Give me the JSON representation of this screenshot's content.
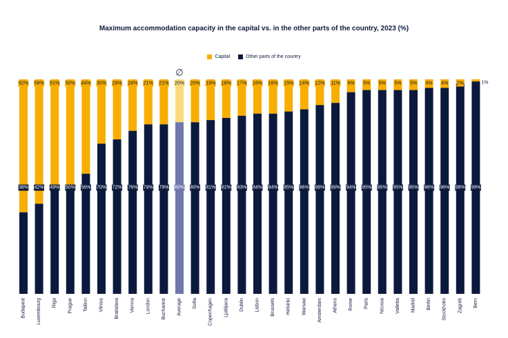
{
  "chart_data": {
    "type": "bar",
    "stacked": true,
    "title": "Maximum accommodation capacity in the capital vs. in the other parts of the country, 2023 (%)",
    "xlabel": "",
    "ylabel": "",
    "ylim": [
      0,
      100
    ],
    "grid": false,
    "legend_position": "top-center",
    "average_symbol": "∅",
    "highlight_category": "Average",
    "categories": [
      "Budapest",
      "Luxembourg",
      "Riga",
      "Prague",
      "Tallinn",
      "Vilnius",
      "Bratislava",
      "Vienna",
      "London",
      "Bucharest",
      "Average",
      "Sofia",
      "Copenhagen",
      "Ljubljana",
      "Dublin",
      "Lisbon",
      "Brussels",
      "Helsinki",
      "Warsaw",
      "Amsterdam",
      "Athens",
      "Rome",
      "Paris",
      "Nicosia",
      "Valletta",
      "Madrid",
      "Berlin",
      "Stockholm",
      "Zagreb",
      "Bern"
    ],
    "series": [
      {
        "name": "Other parts of the country",
        "color": "#0b1a3c",
        "highlight_color": "#6f77ab",
        "values": [
          38,
          42,
          49,
          50,
          56,
          70,
          72,
          76,
          79,
          79,
          80,
          80,
          81,
          82,
          83,
          84,
          84,
          85,
          86,
          88,
          89,
          94,
          95,
          95,
          95,
          95,
          96,
          96,
          98,
          99
        ]
      },
      {
        "name": "Capital",
        "color": "#f8ae00",
        "highlight_color": "#fbdc7a",
        "values": [
          62,
          58,
          51,
          50,
          44,
          30,
          28,
          24,
          21,
          21,
          20,
          20,
          19,
          18,
          17,
          16,
          16,
          15,
          14,
          12,
          11,
          6,
          5,
          5,
          5,
          5,
          4,
          4,
          2,
          1
        ]
      }
    ]
  }
}
